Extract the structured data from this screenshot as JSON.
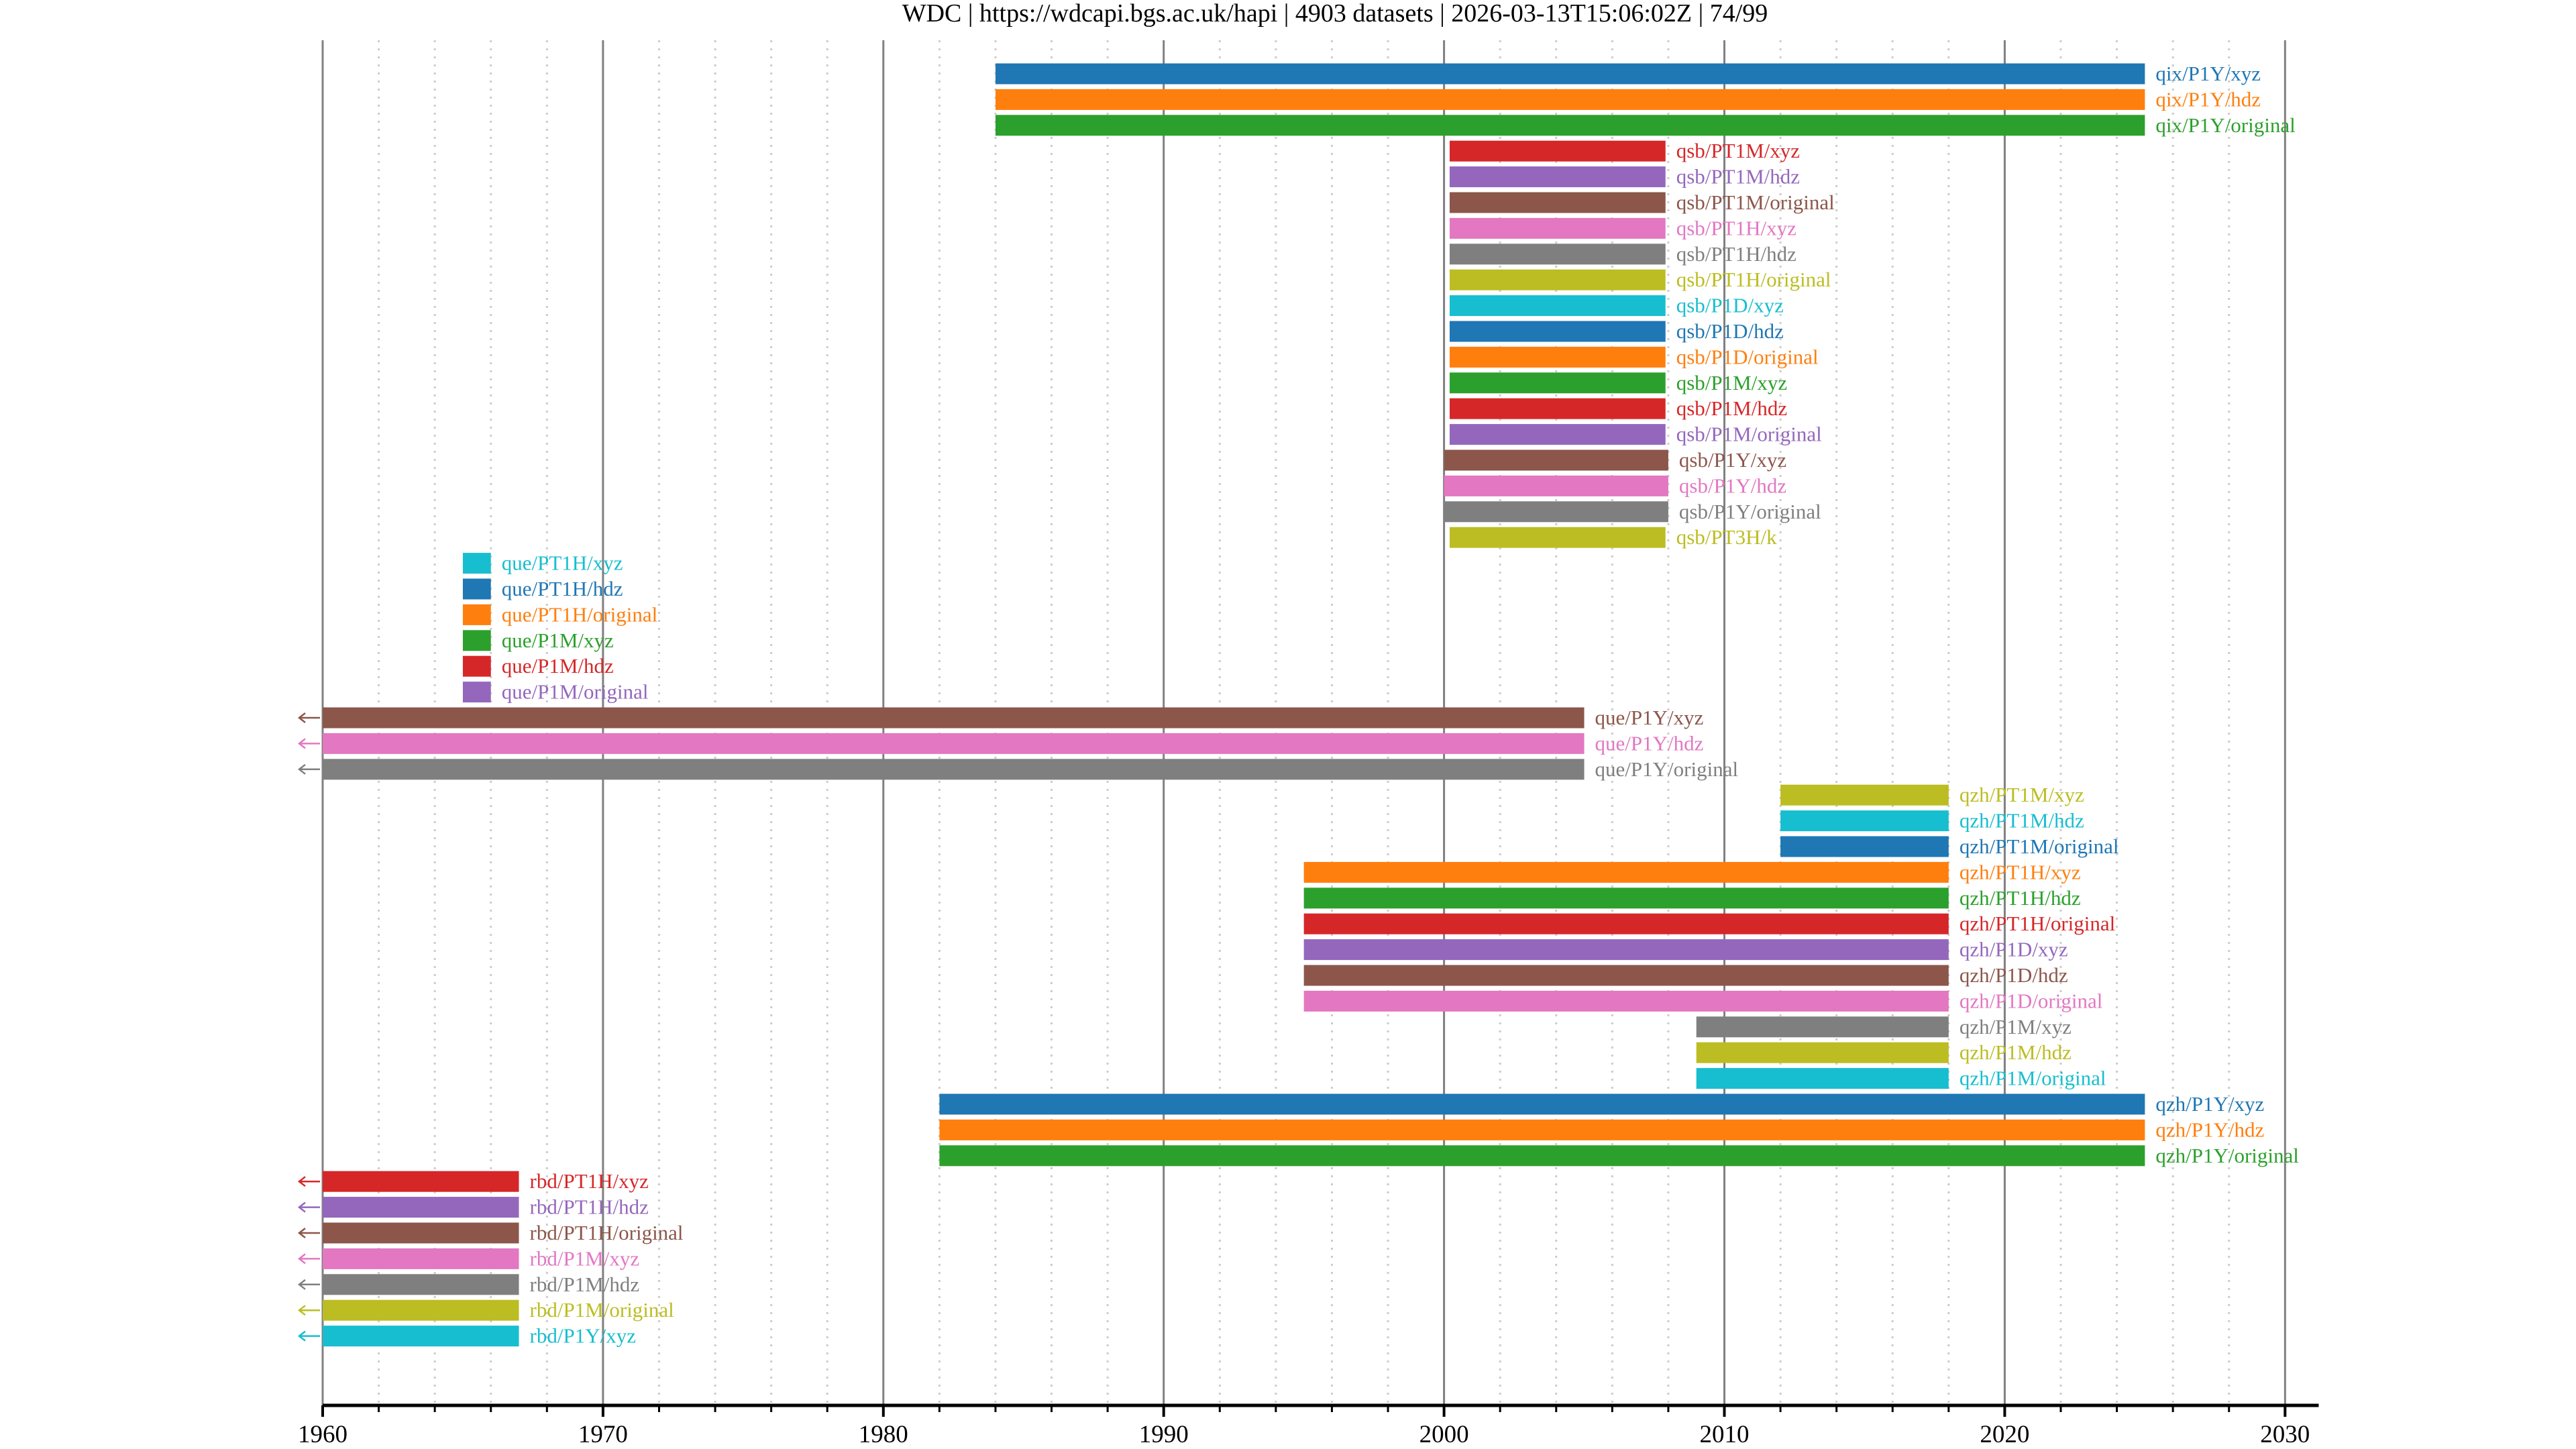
{
  "chart_data": {
    "type": "bar",
    "subtype": "horizontal-timeline",
    "title": "WDC | https://wdcapi.bgs.ac.uk/hapi | 4903 datasets | 2026-03-13T15:06:02Z | 74/99",
    "xlabel": "",
    "ylabel": "",
    "xlim": [
      1960,
      2031.2
    ],
    "x_major_ticks": [
      1960,
      1970,
      1980,
      1990,
      2000,
      2010,
      2020,
      2030
    ],
    "x_tick_labels": [
      "1960",
      "1970",
      "1980",
      "1990",
      "2000",
      "2010",
      "2020",
      "2030"
    ],
    "x_minor_tick_step": 2,
    "grid": true,
    "legend": "none (labels placed right of each bar)",
    "palette": [
      "#1f77b4",
      "#ff7f0e",
      "#2ca02c",
      "#d62728",
      "#9467bd",
      "#8c564b",
      "#e377c2",
      "#7f7f7f",
      "#bcbd22",
      "#17becf"
    ],
    "series": [
      {
        "name": "qix/P1Y/xyz",
        "start": 1984.0,
        "end": 2025.0,
        "color": "#1f77b4",
        "clipped_left": false
      },
      {
        "name": "qix/P1Y/hdz",
        "start": 1984.0,
        "end": 2025.0,
        "color": "#ff7f0e",
        "clipped_left": false
      },
      {
        "name": "qix/P1Y/original",
        "start": 1984.0,
        "end": 2025.0,
        "color": "#2ca02c",
        "clipped_left": false
      },
      {
        "name": "qsb/PT1M/xyz",
        "start": 2000.2,
        "end": 2007.9,
        "color": "#d62728",
        "clipped_left": false
      },
      {
        "name": "qsb/PT1M/hdz",
        "start": 2000.2,
        "end": 2007.9,
        "color": "#9467bd",
        "clipped_left": false
      },
      {
        "name": "qsb/PT1M/original",
        "start": 2000.2,
        "end": 2007.9,
        "color": "#8c564b",
        "clipped_left": false
      },
      {
        "name": "qsb/PT1H/xyz",
        "start": 2000.2,
        "end": 2007.9,
        "color": "#e377c2",
        "clipped_left": false
      },
      {
        "name": "qsb/PT1H/hdz",
        "start": 2000.2,
        "end": 2007.9,
        "color": "#7f7f7f",
        "clipped_left": false
      },
      {
        "name": "qsb/PT1H/original",
        "start": 2000.2,
        "end": 2007.9,
        "color": "#bcbd22",
        "clipped_left": false
      },
      {
        "name": "qsb/P1D/xyz",
        "start": 2000.2,
        "end": 2007.9,
        "color": "#17becf",
        "clipped_left": false
      },
      {
        "name": "qsb/P1D/hdz",
        "start": 2000.2,
        "end": 2007.9,
        "color": "#1f77b4",
        "clipped_left": false
      },
      {
        "name": "qsb/P1D/original",
        "start": 2000.2,
        "end": 2007.9,
        "color": "#ff7f0e",
        "clipped_left": false
      },
      {
        "name": "qsb/P1M/xyz",
        "start": 2000.2,
        "end": 2007.9,
        "color": "#2ca02c",
        "clipped_left": false
      },
      {
        "name": "qsb/P1M/hdz",
        "start": 2000.2,
        "end": 2007.9,
        "color": "#d62728",
        "clipped_left": false
      },
      {
        "name": "qsb/P1M/original",
        "start": 2000.2,
        "end": 2007.9,
        "color": "#9467bd",
        "clipped_left": false
      },
      {
        "name": "qsb/P1Y/xyz",
        "start": 2000.0,
        "end": 2008.0,
        "color": "#8c564b",
        "clipped_left": false
      },
      {
        "name": "qsb/P1Y/hdz",
        "start": 2000.0,
        "end": 2008.0,
        "color": "#e377c2",
        "clipped_left": false
      },
      {
        "name": "qsb/P1Y/original",
        "start": 2000.0,
        "end": 2008.0,
        "color": "#7f7f7f",
        "clipped_left": false
      },
      {
        "name": "qsb/PT3H/k",
        "start": 2000.2,
        "end": 2007.9,
        "color": "#bcbd22",
        "clipped_left": false
      },
      {
        "name": "que/PT1H/xyz",
        "start": 1965.0,
        "end": 1966.0,
        "color": "#17becf",
        "clipped_left": false
      },
      {
        "name": "que/PT1H/hdz",
        "start": 1965.0,
        "end": 1966.0,
        "color": "#1f77b4",
        "clipped_left": false
      },
      {
        "name": "que/PT1H/original",
        "start": 1965.0,
        "end": 1966.0,
        "color": "#ff7f0e",
        "clipped_left": false
      },
      {
        "name": "que/P1M/xyz",
        "start": 1965.0,
        "end": 1966.0,
        "color": "#2ca02c",
        "clipped_left": false
      },
      {
        "name": "que/P1M/hdz",
        "start": 1965.0,
        "end": 1966.0,
        "color": "#d62728",
        "clipped_left": false
      },
      {
        "name": "que/P1M/original",
        "start": 1965.0,
        "end": 1966.0,
        "color": "#9467bd",
        "clipped_left": false
      },
      {
        "name": "que/P1Y/xyz",
        "start": 1960.0,
        "end": 2005.0,
        "color": "#8c564b",
        "clipped_left": true
      },
      {
        "name": "que/P1Y/hdz",
        "start": 1960.0,
        "end": 2005.0,
        "color": "#e377c2",
        "clipped_left": true
      },
      {
        "name": "que/P1Y/original",
        "start": 1960.0,
        "end": 2005.0,
        "color": "#7f7f7f",
        "clipped_left": true
      },
      {
        "name": "qzh/PT1M/xyz",
        "start": 2012.0,
        "end": 2018.0,
        "color": "#bcbd22",
        "clipped_left": false
      },
      {
        "name": "qzh/PT1M/hdz",
        "start": 2012.0,
        "end": 2018.0,
        "color": "#17becf",
        "clipped_left": false
      },
      {
        "name": "qzh/PT1M/original",
        "start": 2012.0,
        "end": 2018.0,
        "color": "#1f77b4",
        "clipped_left": false
      },
      {
        "name": "qzh/PT1H/xyz",
        "start": 1995.0,
        "end": 2018.0,
        "color": "#ff7f0e",
        "clipped_left": false
      },
      {
        "name": "qzh/PT1H/hdz",
        "start": 1995.0,
        "end": 2018.0,
        "color": "#2ca02c",
        "clipped_left": false
      },
      {
        "name": "qzh/PT1H/original",
        "start": 1995.0,
        "end": 2018.0,
        "color": "#d62728",
        "clipped_left": false
      },
      {
        "name": "qzh/P1D/xyz",
        "start": 1995.0,
        "end": 2018.0,
        "color": "#9467bd",
        "clipped_left": false
      },
      {
        "name": "qzh/P1D/hdz",
        "start": 1995.0,
        "end": 2018.0,
        "color": "#8c564b",
        "clipped_left": false
      },
      {
        "name": "qzh/P1D/original",
        "start": 1995.0,
        "end": 2018.0,
        "color": "#e377c2",
        "clipped_left": false
      },
      {
        "name": "qzh/P1M/xyz",
        "start": 2009.0,
        "end": 2018.0,
        "color": "#7f7f7f",
        "clipped_left": false
      },
      {
        "name": "qzh/P1M/hdz",
        "start": 2009.0,
        "end": 2018.0,
        "color": "#bcbd22",
        "clipped_left": false
      },
      {
        "name": "qzh/P1M/original",
        "start": 2009.0,
        "end": 2018.0,
        "color": "#17becf",
        "clipped_left": false
      },
      {
        "name": "qzh/P1Y/xyz",
        "start": 1982.0,
        "end": 2025.0,
        "color": "#1f77b4",
        "clipped_left": false
      },
      {
        "name": "qzh/P1Y/hdz",
        "start": 1982.0,
        "end": 2025.0,
        "color": "#ff7f0e",
        "clipped_left": false
      },
      {
        "name": "qzh/P1Y/original",
        "start": 1982.0,
        "end": 2025.0,
        "color": "#2ca02c",
        "clipped_left": false
      },
      {
        "name": "rbd/PT1H/xyz",
        "start": 1960.0,
        "end": 1967.0,
        "color": "#d62728",
        "clipped_left": true
      },
      {
        "name": "rbd/PT1H/hdz",
        "start": 1960.0,
        "end": 1967.0,
        "color": "#9467bd",
        "clipped_left": true
      },
      {
        "name": "rbd/PT1H/original",
        "start": 1960.0,
        "end": 1967.0,
        "color": "#8c564b",
        "clipped_left": true
      },
      {
        "name": "rbd/P1M/xyz",
        "start": 1960.0,
        "end": 1967.0,
        "color": "#e377c2",
        "clipped_left": true
      },
      {
        "name": "rbd/P1M/hdz",
        "start": 1960.0,
        "end": 1967.0,
        "color": "#7f7f7f",
        "clipped_left": true
      },
      {
        "name": "rbd/P1M/original",
        "start": 1960.0,
        "end": 1967.0,
        "color": "#bcbd22",
        "clipped_left": true
      },
      {
        "name": "rbd/P1Y/xyz",
        "start": 1960.0,
        "end": 1967.0,
        "color": "#17becf",
        "clipped_left": true
      }
    ]
  }
}
